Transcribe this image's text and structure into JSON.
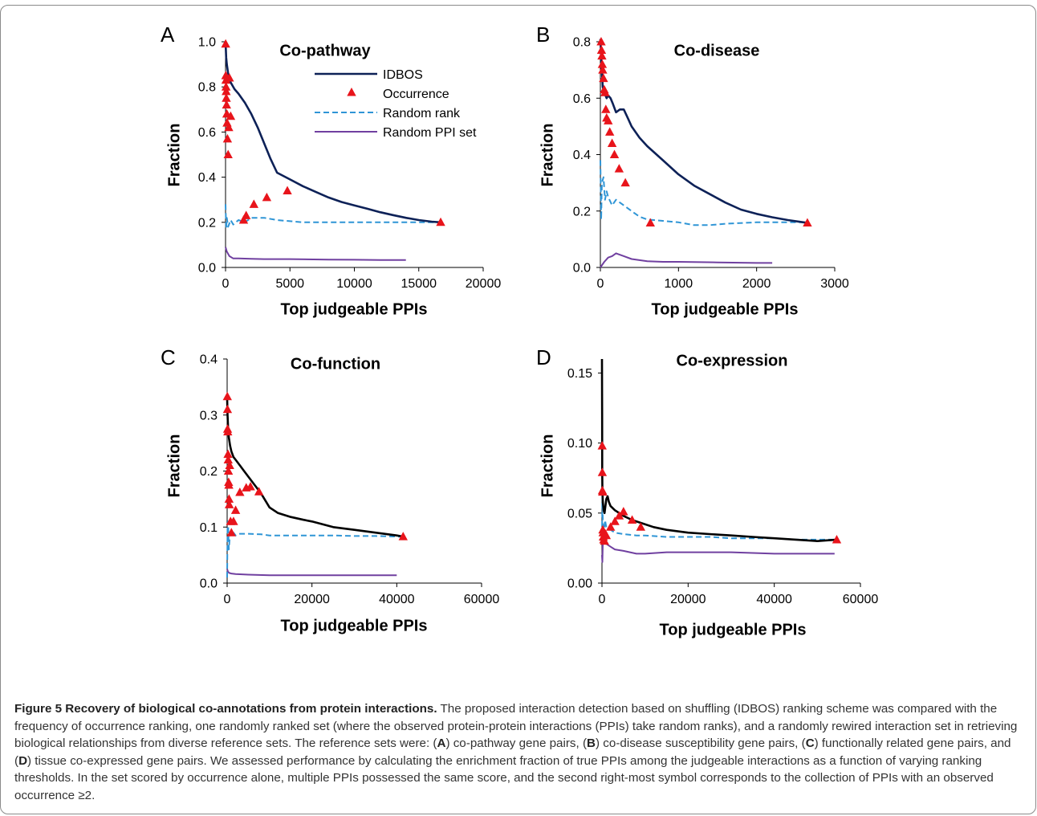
{
  "legend": [
    "IDBOS",
    "Occurrence",
    "Random rank",
    "Random PPI set"
  ],
  "colors": {
    "idbos_blue": "#0d2157",
    "idbos_black": "#000000",
    "occurrence": "#e8141b",
    "random_rank": "#2f95d6",
    "random_ppi": "#7040a0"
  },
  "caption": {
    "title": "Figure 5 Recovery of biological co-annotations from protein interactions.",
    "body_1": " The proposed interaction detection based on shuffling (IDBOS) ranking scheme was compared with the frequency of occurrence ranking, one randomly ranked set (where the observed protein-protein interactions (PPIs) take random ranks), and a randomly rewired interaction set in retrieving biological relationships from diverse reference sets. The reference sets were: (",
    "A": "A",
    "body_2": ") co-pathway gene pairs, (",
    "B": "B",
    "body_3": ") co-disease susceptibility gene pairs, (",
    "C": "C",
    "body_4": ") functionally related gene pairs, and (",
    "D": "D",
    "body_5": ") tissue co-expressed gene pairs. We assessed performance by calculating the enrichment fraction of true PPIs among the judgeable interactions as a function of varying ranking thresholds. In the set scored by occurrence alone, multiple PPIs possessed the same score, and the second right-most symbol corresponds to the collection of PPIs with an observed occurrence ≥2."
  },
  "chart_data": [
    {
      "type": "line",
      "panel": "A",
      "title": "Co-pathway",
      "xlabel": "Top judgeable PPIs",
      "ylabel": "Fraction",
      "xlim": [
        0,
        20000
      ],
      "ylim": [
        0,
        1.0
      ],
      "xticks": [
        "0",
        "5000",
        "10000",
        "15000",
        "20000"
      ],
      "yticks": [
        "0.0",
        "0.2",
        "0.4",
        "0.6",
        "0.8",
        "1.0"
      ],
      "series": [
        {
          "name": "IDBOS",
          "style": "solid",
          "color": "#0d2157",
          "x": [
            0,
            50,
            100,
            200,
            400,
            700,
            1000,
            1500,
            2000,
            2500,
            3000,
            3500,
            4000,
            5000,
            6000,
            7000,
            8000,
            9000,
            10000,
            11000,
            12000,
            13000,
            14000,
            15000,
            16000,
            16700
          ],
          "y": [
            1.0,
            0.93,
            0.9,
            0.86,
            0.82,
            0.79,
            0.77,
            0.73,
            0.68,
            0.62,
            0.55,
            0.48,
            0.42,
            0.39,
            0.36,
            0.335,
            0.31,
            0.29,
            0.275,
            0.26,
            0.245,
            0.232,
            0.22,
            0.21,
            0.203,
            0.2
          ]
        },
        {
          "name": "Occurrence",
          "style": "markers",
          "color": "#e8141b",
          "x": [
            10,
            20,
            30,
            40,
            50,
            60,
            80,
            100,
            120,
            150,
            200,
            250,
            300,
            400,
            1400,
            1600,
            2200,
            3200,
            4800,
            16700
          ],
          "y": [
            0.99,
            0.85,
            0.83,
            0.8,
            0.78,
            0.75,
            0.72,
            0.68,
            0.64,
            0.57,
            0.5,
            0.62,
            0.84,
            0.67,
            0.21,
            0.23,
            0.28,
            0.31,
            0.34,
            0.2
          ]
        },
        {
          "name": "Random rank",
          "style": "dashed",
          "color": "#2f95d6",
          "x": [
            0,
            50,
            100,
            200,
            400,
            600,
            1000,
            1500,
            2000,
            3000,
            4000,
            6000,
            8000,
            10000,
            12000,
            14000,
            16000,
            16700
          ],
          "y": [
            0.28,
            0.17,
            0.22,
            0.18,
            0.21,
            0.19,
            0.21,
            0.2,
            0.22,
            0.22,
            0.21,
            0.2,
            0.2,
            0.2,
            0.2,
            0.2,
            0.2,
            0.2
          ]
        },
        {
          "name": "Random PPI set",
          "style": "solid",
          "color": "#7040a0",
          "x": [
            0,
            100,
            300,
            600,
            1000,
            2000,
            3000,
            5000,
            8000,
            10000,
            12000,
            14000
          ],
          "y": [
            0.09,
            0.07,
            0.05,
            0.04,
            0.04,
            0.038,
            0.037,
            0.037,
            0.035,
            0.034,
            0.033,
            0.033
          ]
        }
      ]
    },
    {
      "type": "line",
      "panel": "B",
      "title": "Co-disease",
      "xlabel": "Top judgeable PPIs",
      "ylabel": "Fraction",
      "xlim": [
        0,
        3000
      ],
      "ylim": [
        0,
        0.8
      ],
      "xticks": [
        "0",
        "1000",
        "2000",
        "3000"
      ],
      "yticks": [
        "0.0",
        "0.2",
        "0.4",
        "0.6",
        "0.8"
      ],
      "series": [
        {
          "name": "IDBOS",
          "style": "solid",
          "color": "#0d2157",
          "x": [
            0,
            10,
            20,
            30,
            50,
            80,
            100,
            130,
            160,
            200,
            250,
            300,
            350,
            400,
            500,
            600,
            800,
            1000,
            1200,
            1400,
            1600,
            1800,
            2000,
            2200,
            2400,
            2600,
            2650
          ],
          "y": [
            0.81,
            0.75,
            0.7,
            0.64,
            0.62,
            0.6,
            0.61,
            0.6,
            0.58,
            0.55,
            0.56,
            0.56,
            0.53,
            0.5,
            0.46,
            0.43,
            0.38,
            0.33,
            0.29,
            0.26,
            0.23,
            0.205,
            0.19,
            0.178,
            0.168,
            0.16,
            0.158
          ]
        },
        {
          "name": "Occurrence",
          "style": "markers",
          "color": "#e8141b",
          "x": [
            10,
            15,
            20,
            25,
            30,
            40,
            50,
            60,
            70,
            80,
            100,
            120,
            150,
            180,
            240,
            320,
            640,
            2650
          ],
          "y": [
            0.8,
            0.77,
            0.75,
            0.72,
            0.7,
            0.67,
            0.63,
            0.62,
            0.56,
            0.53,
            0.52,
            0.48,
            0.44,
            0.4,
            0.35,
            0.3,
            0.158,
            0.158
          ]
        },
        {
          "name": "Random rank",
          "style": "dashed",
          "color": "#2f95d6",
          "x": [
            0,
            10,
            20,
            40,
            60,
            80,
            100,
            150,
            200,
            250,
            300,
            400,
            500,
            600,
            800,
            1000,
            1200,
            1400,
            1600,
            2000,
            2400,
            2650
          ],
          "y": [
            0.38,
            0.17,
            0.3,
            0.32,
            0.24,
            0.27,
            0.25,
            0.22,
            0.24,
            0.23,
            0.22,
            0.2,
            0.18,
            0.17,
            0.165,
            0.16,
            0.15,
            0.15,
            0.155,
            0.16,
            0.16,
            0.16
          ]
        },
        {
          "name": "Random PPI set",
          "style": "solid",
          "color": "#7040a0",
          "x": [
            0,
            50,
            100,
            150,
            200,
            300,
            400,
            600,
            800,
            1000,
            1500,
            2000,
            2200
          ],
          "y": [
            0.0,
            0.02,
            0.035,
            0.04,
            0.05,
            0.04,
            0.03,
            0.022,
            0.02,
            0.02,
            0.018,
            0.016,
            0.016
          ]
        }
      ]
    },
    {
      "type": "line",
      "panel": "C",
      "title": "Co-function",
      "xlabel": "Top judgeable PPIs",
      "ylabel": "Fraction",
      "xlim": [
        0,
        60000
      ],
      "ylim": [
        0,
        0.4
      ],
      "xticks": [
        "0",
        "20000",
        "40000",
        "60000"
      ],
      "yticks": [
        "0.0",
        "0.1",
        "0.2",
        "0.3",
        "0.4"
      ],
      "series": [
        {
          "name": "IDBOS",
          "style": "solid",
          "color": "#000000",
          "x": [
            0,
            100,
            200,
            400,
            700,
            1000,
            1500,
            2000,
            3000,
            4000,
            6000,
            8000,
            10000,
            12000,
            15000,
            18000,
            20000,
            25000,
            30000,
            35000,
            40000,
            41500
          ],
          "y": [
            0.33,
            0.3,
            0.28,
            0.26,
            0.245,
            0.235,
            0.225,
            0.22,
            0.21,
            0.2,
            0.18,
            0.16,
            0.135,
            0.125,
            0.118,
            0.113,
            0.11,
            0.1,
            0.095,
            0.09,
            0.085,
            0.083
          ]
        },
        {
          "name": "Occurrence",
          "style": "markers",
          "color": "#e8141b",
          "x": [
            50,
            80,
            100,
            150,
            200,
            250,
            300,
            350,
            400,
            450,
            500,
            600,
            800,
            1000,
            1500,
            2000,
            3000,
            4500,
            5500,
            7500,
            41500
          ],
          "y": [
            0.333,
            0.31,
            0.275,
            0.27,
            0.23,
            0.22,
            0.2,
            0.18,
            0.175,
            0.15,
            0.14,
            0.21,
            0.11,
            0.09,
            0.11,
            0.13,
            0.162,
            0.17,
            0.172,
            0.163,
            0.083
          ]
        },
        {
          "name": "Random rank",
          "style": "dashed",
          "color": "#2f95d6",
          "x": [
            0,
            100,
            200,
            400,
            700,
            1000,
            1500,
            2000,
            3000,
            5000,
            8000,
            10000,
            15000,
            20000,
            25000,
            30000,
            35000,
            40000,
            41500
          ],
          "y": [
            0.01,
            0.1,
            0.11,
            0.06,
            0.09,
            0.085,
            0.09,
            0.085,
            0.088,
            0.088,
            0.087,
            0.085,
            0.085,
            0.085,
            0.085,
            0.084,
            0.084,
            0.083,
            0.083
          ]
        },
        {
          "name": "Random PPI set",
          "style": "solid",
          "color": "#7040a0",
          "x": [
            0,
            200,
            500,
            1000,
            2000,
            5000,
            10000,
            20000,
            30000,
            40000
          ],
          "y": [
            0.025,
            0.02,
            0.018,
            0.017,
            0.016,
            0.015,
            0.014,
            0.014,
            0.014,
            0.014
          ]
        }
      ]
    },
    {
      "type": "line",
      "panel": "D",
      "title": "Co-expression",
      "xlabel": "Top judgeable PPIs",
      "ylabel": "Fraction",
      "xlim": [
        0,
        60000
      ],
      "ylim": [
        0,
        0.16
      ],
      "xticks": [
        "0",
        "20000",
        "40000",
        "60000"
      ],
      "yticks": [
        "0.00",
        "0.05",
        "0.10",
        "0.15"
      ],
      "series": [
        {
          "name": "IDBOS",
          "style": "solid",
          "color": "#000000",
          "x": [
            0,
            30,
            60,
            100,
            150,
            200,
            300,
            400,
            600,
            800,
            1000,
            1300,
            1600,
            2000,
            3000,
            4000,
            5000,
            7000,
            9000,
            12000,
            15000,
            20000,
            25000,
            30000,
            35000,
            40000,
            45000,
            50000,
            54500
          ],
          "y": [
            0.16,
            0.12,
            0.08,
            0.068,
            0.062,
            0.058,
            0.055,
            0.052,
            0.05,
            0.055,
            0.06,
            0.062,
            0.058,
            0.055,
            0.052,
            0.05,
            0.048,
            0.045,
            0.043,
            0.04,
            0.038,
            0.036,
            0.035,
            0.034,
            0.033,
            0.032,
            0.031,
            0.03,
            0.031
          ]
        },
        {
          "name": "Occurrence",
          "style": "markers",
          "color": "#e8141b",
          "x": [
            50,
            80,
            100,
            150,
            200,
            250,
            300,
            400,
            600,
            800,
            1000,
            2000,
            3000,
            4000,
            5000,
            7000,
            9000,
            54500
          ],
          "y": [
            0.098,
            0.079,
            0.066,
            0.065,
            0.038,
            0.036,
            0.033,
            0.031,
            0.03,
            0.035,
            0.034,
            0.04,
            0.044,
            0.048,
            0.051,
            0.045,
            0.04,
            0.031
          ]
        },
        {
          "name": "Random rank",
          "style": "dashed",
          "color": "#2f95d6",
          "x": [
            0,
            100,
            200,
            400,
            700,
            1000,
            2000,
            3000,
            5000,
            8000,
            10000,
            15000,
            20000,
            25000,
            30000,
            35000,
            40000,
            45000,
            50000,
            54500
          ],
          "y": [
            0.028,
            0.07,
            0.04,
            0.035,
            0.045,
            0.04,
            0.038,
            0.036,
            0.035,
            0.034,
            0.034,
            0.033,
            0.033,
            0.033,
            0.032,
            0.032,
            0.032,
            0.031,
            0.031,
            0.031
          ]
        },
        {
          "name": "Random PPI set",
          "style": "solid",
          "color": "#7040a0",
          "x": [
            0,
            100,
            200,
            400,
            700,
            1000,
            2000,
            3000,
            5000,
            8000,
            10000,
            15000,
            20000,
            25000,
            30000,
            40000,
            50000,
            54000
          ],
          "y": [
            0.02,
            0.015,
            0.03,
            0.028,
            0.03,
            0.028,
            0.026,
            0.024,
            0.023,
            0.021,
            0.021,
            0.022,
            0.022,
            0.022,
            0.022,
            0.021,
            0.021,
            0.021
          ]
        }
      ]
    }
  ]
}
